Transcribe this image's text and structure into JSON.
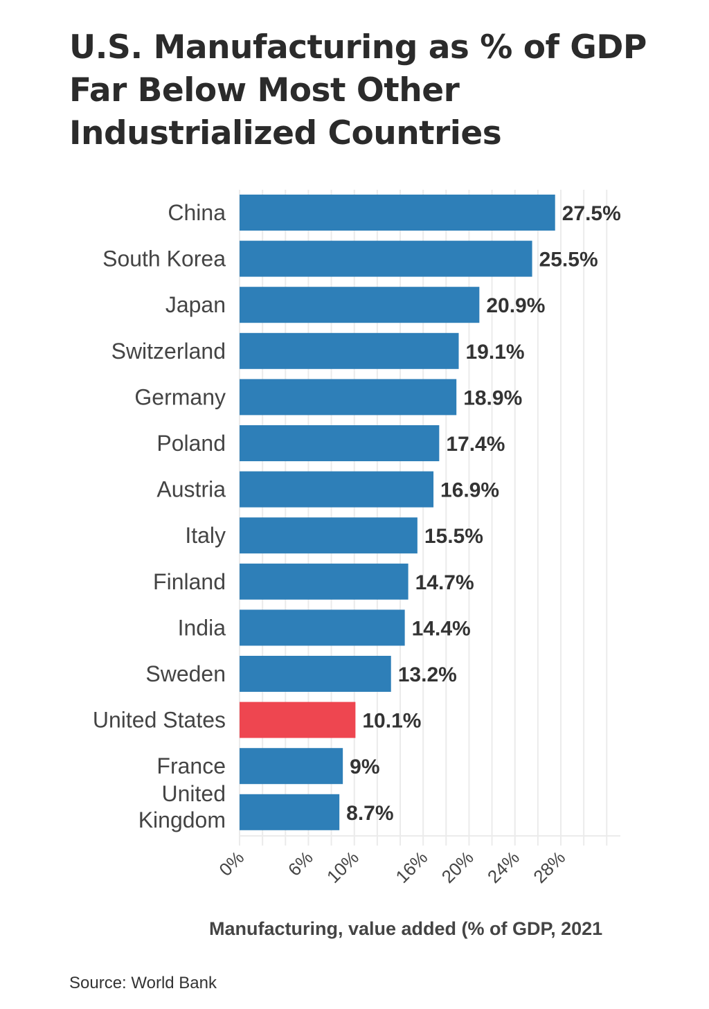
{
  "chart_data": {
    "type": "bar",
    "orientation": "horizontal",
    "title": "U.S. Manufacturing as % of GDP Far Below Most Other Industrialized Countries",
    "xlabel": "Manufacturing, value added (% of GDP, 2021",
    "ylabel": "",
    "categories": [
      "China",
      "South Korea",
      "Japan",
      "Switzerland",
      "Germany",
      "Poland",
      "Austria",
      "Italy",
      "Finland",
      "India",
      "Sweden",
      "United States",
      "France",
      "United Kingdom"
    ],
    "values": [
      27.5,
      25.5,
      20.9,
      19.1,
      18.9,
      17.4,
      16.9,
      15.5,
      14.7,
      14.4,
      13.2,
      10.1,
      9,
      8.7
    ],
    "value_labels": [
      "27.5%",
      "25.5%",
      "20.9%",
      "19.1%",
      "18.9%",
      "17.4%",
      "16.9%",
      "15.5%",
      "14.7%",
      "14.4%",
      "13.2%",
      "10.1%",
      "9%",
      "8.7%"
    ],
    "highlight": "United States",
    "colors": {
      "default": "#2e7fb8",
      "highlight": "#ee4650",
      "grid": "#ebebeb"
    },
    "xticks": [
      0,
      6,
      10,
      16,
      20,
      24,
      28
    ],
    "xtick_labels": [
      "0%",
      "6%",
      "10%",
      "16%",
      "20%",
      "24%",
      "28%"
    ],
    "grid_step": 2,
    "xlim": [
      0,
      33
    ],
    "grid": true,
    "legend": "none"
  },
  "source": "Source: World Bank"
}
